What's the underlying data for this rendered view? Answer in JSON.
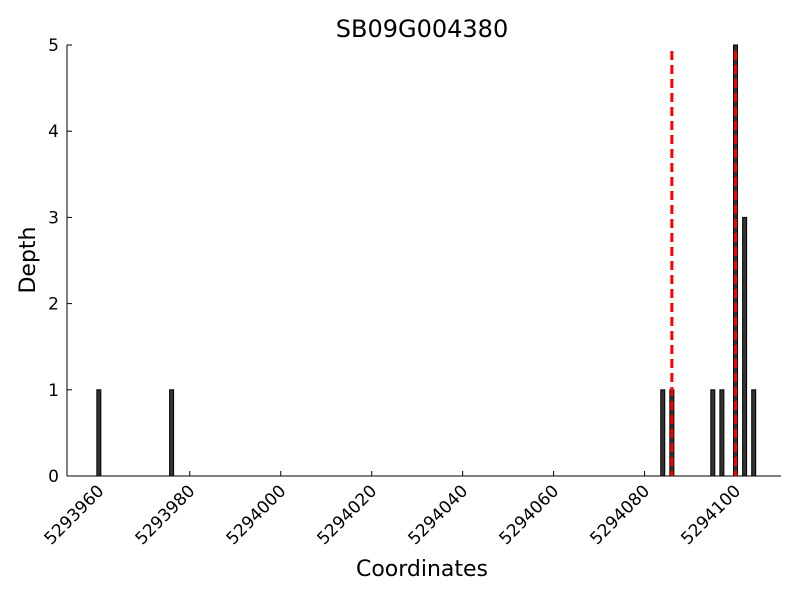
{
  "chart_data": {
    "type": "bar",
    "title": "SB09G004380",
    "xlabel": "Coordinates",
    "ylabel": "Depth",
    "xlim": [
      5293953,
      5294110
    ],
    "ylim": [
      0,
      5
    ],
    "xticks": [
      5293960,
      5293980,
      5294000,
      5294020,
      5294040,
      5294060,
      5294080,
      5294100
    ],
    "yticks": [
      0,
      1,
      2,
      3,
      4,
      5
    ],
    "grid": false,
    "bar_color": "#333333",
    "marker_color": "#ff0000",
    "x": [
      5293960,
      5293976,
      5294084,
      5294086,
      5294095,
      5294097,
      5294100,
      5294102,
      5294104
    ],
    "values": [
      1,
      1,
      1,
      1,
      1,
      1,
      5,
      3,
      1
    ],
    "markers": [
      5294086,
      5294100
    ]
  }
}
